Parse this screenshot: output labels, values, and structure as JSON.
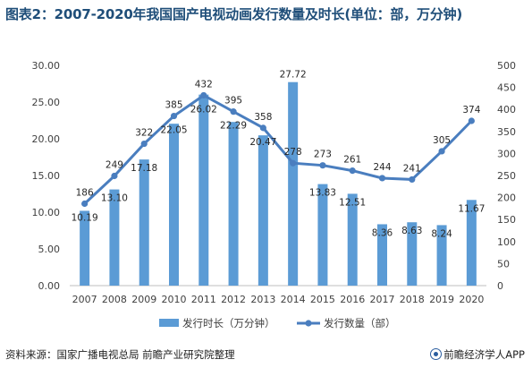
{
  "chart_data": {
    "type": "bar+line",
    "title": "图表2：2007-2020年我国国产电视动画发行数量及时长(单位：部，万分钟)",
    "categories": [
      "2007",
      "2008",
      "2009",
      "2010",
      "2011",
      "2012",
      "2013",
      "2014",
      "2015",
      "2016",
      "2017",
      "2018",
      "2019",
      "2020"
    ],
    "series": [
      {
        "name": "发行时长（万分钟）",
        "kind": "bar",
        "axis": "left",
        "color": "#5b9bd5",
        "values": [
          10.19,
          13.1,
          17.18,
          22.05,
          26.02,
          22.29,
          20.47,
          27.72,
          13.83,
          12.51,
          8.36,
          8.63,
          8.24,
          11.67
        ],
        "labels": [
          "10.19",
          "13.10",
          "17.18",
          "22.05",
          "26.02",
          "22.29",
          "20.47",
          "27.72",
          "13.83",
          "12.51",
          "8.36",
          "8.63",
          "8.24",
          "11.67"
        ]
      },
      {
        "name": "发行数量（部）",
        "kind": "line",
        "axis": "right",
        "color": "#4a7ebf",
        "values": [
          186,
          249,
          322,
          385,
          432,
          395,
          358,
          278,
          273,
          261,
          244,
          241,
          305,
          374
        ],
        "labels": [
          "186",
          "249",
          "322",
          "385",
          "432",
          "395",
          "358",
          "278",
          "273",
          "261",
          "244",
          "241",
          "305",
          "374"
        ]
      }
    ],
    "left_axis": {
      "min": 0,
      "max": 30,
      "step": 5,
      "tick_labels": [
        "0.00",
        "5.00",
        "10.00",
        "15.00",
        "20.00",
        "25.00",
        "30.00"
      ]
    },
    "right_axis": {
      "min": 0,
      "max": 500,
      "step": 50,
      "tick_labels": [
        "0",
        "50",
        "100",
        "150",
        "200",
        "250",
        "300",
        "350",
        "400",
        "450",
        "500"
      ]
    },
    "legend_position": "bottom",
    "grid": false
  },
  "footer": {
    "source": "资料来源：国家广播电视总局 前瞻产业研究院整理",
    "brand": "前瞻经济学人APP"
  }
}
